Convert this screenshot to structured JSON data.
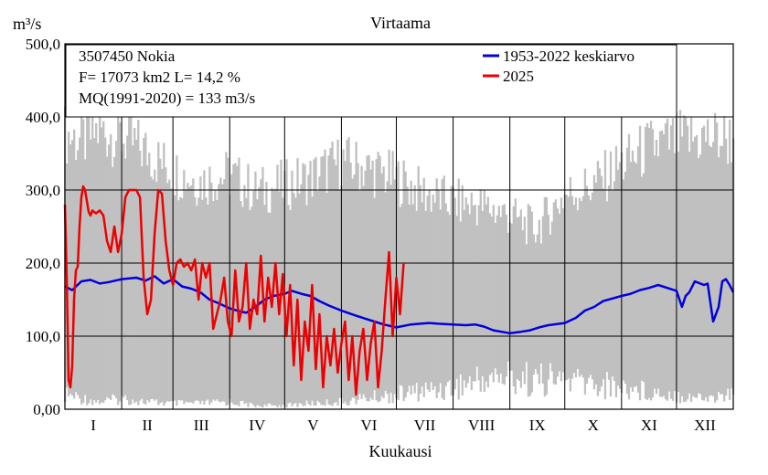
{
  "chart_data": {
    "type": "line",
    "title": "Virtaama",
    "ylabel": "m³/s",
    "xlabel": "Kuukausi",
    "ylim": [
      0,
      500
    ],
    "xlim": [
      1,
      366
    ],
    "y_ticks": [
      "0,00",
      "100,0",
      "200,0",
      "300,0",
      "400,0",
      "500,0"
    ],
    "y_tick_values": [
      0,
      100,
      200,
      300,
      400,
      500
    ],
    "months": [
      "I",
      "II",
      "III",
      "IV",
      "V",
      "VI",
      "VII",
      "VIII",
      "IX",
      "X",
      "XI",
      "XII"
    ],
    "month_start_days": [
      1,
      32,
      60,
      91,
      121,
      152,
      182,
      213,
      244,
      274,
      305,
      335,
      366
    ],
    "grid": true,
    "info_lines": [
      "3507450 Nokia",
      "F=  17073 km2 L=  14,2 %",
      "MQ(1991-2020) = 133 m3/s"
    ],
    "range_band": {
      "color": "#c0c0c0",
      "description_days_max": [
        1,
        10,
        20,
        32,
        45,
        60,
        75,
        91,
        105,
        121,
        135,
        152,
        165,
        182,
        195,
        213,
        228,
        244,
        258,
        274,
        290,
        305,
        320,
        335,
        350,
        366
      ],
      "max": [
        405,
        395,
        410,
        400,
        380,
        350,
        335,
        345,
        320,
        330,
        340,
        365,
        355,
        340,
        320,
        305,
        300,
        285,
        265,
        315,
        330,
        360,
        385,
        395,
        400,
        398
      ],
      "min": [
        20,
        15,
        10,
        15,
        10,
        8,
        8,
        10,
        5,
        5,
        8,
        10,
        15,
        20,
        25,
        30,
        40,
        45,
        40,
        40,
        35,
        30,
        25,
        20,
        15,
        20
      ]
    },
    "series": [
      {
        "name": "1953-2022 keskiarvo",
        "color": "#0000e0",
        "x": [
          1,
          5,
          10,
          15,
          20,
          25,
          32,
          40,
          45,
          50,
          55,
          60,
          65,
          70,
          75,
          80,
          85,
          91,
          95,
          100,
          105,
          110,
          115,
          121,
          125,
          130,
          135,
          140,
          145,
          152,
          160,
          165,
          170,
          175,
          182,
          190,
          195,
          200,
          205,
          213,
          220,
          225,
          230,
          235,
          244,
          250,
          255,
          260,
          265,
          274,
          280,
          285,
          290,
          295,
          305,
          310,
          315,
          320,
          325,
          335,
          338,
          340,
          342,
          345,
          348,
          350,
          352,
          355,
          358,
          360,
          362,
          364,
          366
        ],
        "y": [
          168,
          163,
          175,
          177,
          172,
          174,
          178,
          180,
          176,
          182,
          172,
          178,
          168,
          165,
          160,
          150,
          145,
          138,
          135,
          132,
          140,
          150,
          155,
          158,
          162,
          158,
          155,
          148,
          142,
          135,
          128,
          124,
          120,
          116,
          112,
          116,
          117,
          118,
          117,
          116,
          115,
          116,
          113,
          108,
          104,
          106,
          108,
          112,
          115,
          118,
          125,
          135,
          140,
          148,
          155,
          158,
          163,
          166,
          170,
          162,
          140,
          155,
          160,
          175,
          172,
          170,
          172,
          120,
          140,
          175,
          178,
          170,
          160
        ]
      },
      {
        "name": "2025",
        "color": "#ee0000",
        "x": [
          1,
          2,
          3,
          4,
          5,
          6,
          7,
          8,
          9,
          10,
          11,
          12,
          13,
          14,
          15,
          16,
          17,
          18,
          20,
          22,
          24,
          26,
          28,
          30,
          32,
          34,
          36,
          38,
          40,
          42,
          44,
          46,
          48,
          50,
          52,
          54,
          56,
          58,
          60,
          62,
          64,
          66,
          68,
          70,
          72,
          74,
          76,
          78,
          80,
          82,
          84,
          86,
          88,
          90,
          92,
          94,
          96,
          98,
          100,
          102,
          104,
          106,
          108,
          110,
          112,
          114,
          116,
          118,
          120,
          122,
          124,
          126,
          128,
          130,
          132,
          134,
          136,
          138,
          140,
          142,
          144,
          146,
          148,
          150,
          152,
          154,
          156,
          158,
          160,
          162,
          164,
          166,
          168,
          170,
          172,
          174,
          176,
          178,
          180,
          182,
          184,
          186
        ],
        "y": [
          280,
          180,
          40,
          30,
          60,
          150,
          190,
          195,
          250,
          290,
          305,
          300,
          285,
          270,
          265,
          272,
          270,
          268,
          272,
          265,
          230,
          215,
          250,
          215,
          240,
          290,
          300,
          300,
          300,
          290,
          180,
          130,
          150,
          240,
          300,
          295,
          230,
          190,
          170,
          200,
          205,
          195,
          200,
          190,
          205,
          150,
          200,
          180,
          200,
          110,
          130,
          150,
          180,
          120,
          100,
          190,
          120,
          140,
          200,
          110,
          150,
          130,
          210,
          120,
          180,
          140,
          200,
          130,
          185,
          100,
          170,
          60,
          150,
          40,
          120,
          80,
          170,
          55,
          130,
          30,
          100,
          60,
          110,
          50,
          90,
          120,
          40,
          100,
          20,
          80,
          110,
          40,
          90,
          120,
          30,
          80,
          150,
          215,
          100,
          180,
          130,
          200
        ]
      }
    ]
  }
}
